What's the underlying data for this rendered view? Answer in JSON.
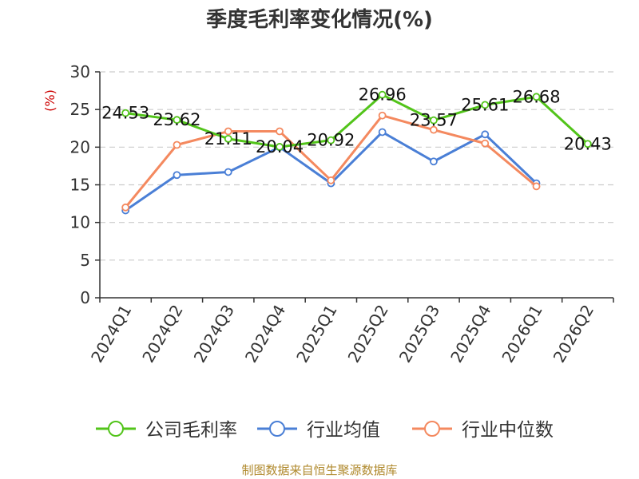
{
  "chart_data": {
    "type": "line",
    "title": "季度毛利率变化情况(%)",
    "ylabel": "(%)",
    "xlabel": "",
    "categories": [
      "2024Q1",
      "2024Q2",
      "2024Q3",
      "2024Q4",
      "2025Q1",
      "2025Q2",
      "2025Q3",
      "2025Q4",
      "2026Q1",
      "2026Q2"
    ],
    "yticks": [
      "0",
      "5",
      "10",
      "15",
      "20",
      "25",
      "30"
    ],
    "ylim": [
      0,
      30
    ],
    "grid": true,
    "legend_position": "bottom",
    "series": [
      {
        "name": "公司毛利率",
        "color": "#52c41a",
        "values": [
          24.53,
          23.62,
          21.11,
          20.04,
          20.92,
          26.96,
          23.57,
          25.61,
          26.68,
          20.43
        ],
        "labels": [
          "24.53",
          "23.62",
          "21.11",
          "20.04",
          "20.92",
          "26.96",
          "23.57",
          "25.61",
          "26.68",
          "20.43"
        ]
      },
      {
        "name": "行业均值",
        "color": "#4a7fd6",
        "values": [
          11.6,
          16.3,
          16.7,
          20.0,
          15.2,
          22.0,
          18.1,
          21.7,
          15.2,
          null
        ]
      },
      {
        "name": "行业中位数",
        "color": "#f4895f",
        "values": [
          12.0,
          20.3,
          22.1,
          22.1,
          15.6,
          24.2,
          22.3,
          20.5,
          14.8,
          null
        ]
      }
    ]
  },
  "source": "制图数据来自恒生聚源数据库"
}
